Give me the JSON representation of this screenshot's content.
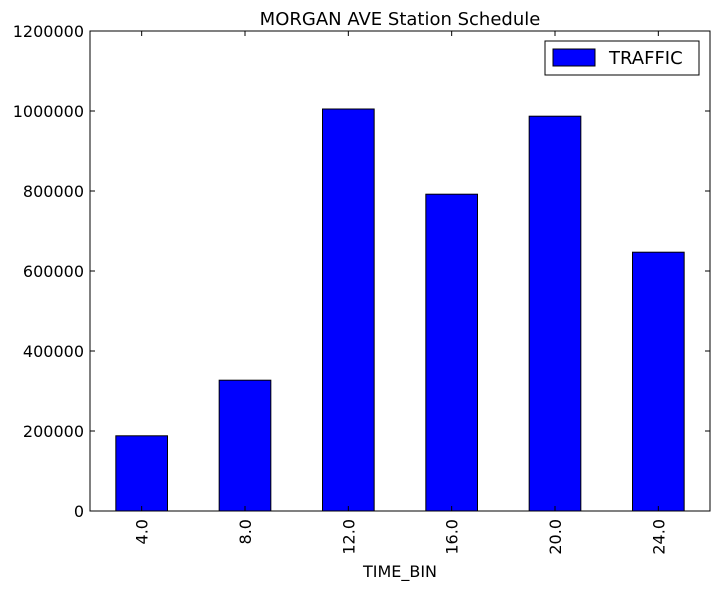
{
  "chart_data": {
    "type": "bar",
    "title": "MORGAN AVE Station Schedule",
    "xlabel": "TIME_BIN",
    "ylabel": "",
    "categories": [
      "4.0",
      "8.0",
      "12.0",
      "16.0",
      "20.0",
      "24.0"
    ],
    "series": [
      {
        "name": "TRAFFIC",
        "color": "#0000ff",
        "values": [
          188000,
          327000,
          1005000,
          792000,
          987000,
          647000
        ]
      }
    ],
    "ylim": [
      0,
      1200000
    ],
    "yticks": [
      0,
      200000,
      400000,
      600000,
      800000,
      1000000,
      1200000
    ],
    "ytick_labels": [
      "0",
      "200000",
      "400000",
      "600000",
      "800000",
      "1000000",
      "1200000"
    ],
    "x_tick_rotation": "vertical",
    "grid": false,
    "legend_position": "upper right"
  }
}
